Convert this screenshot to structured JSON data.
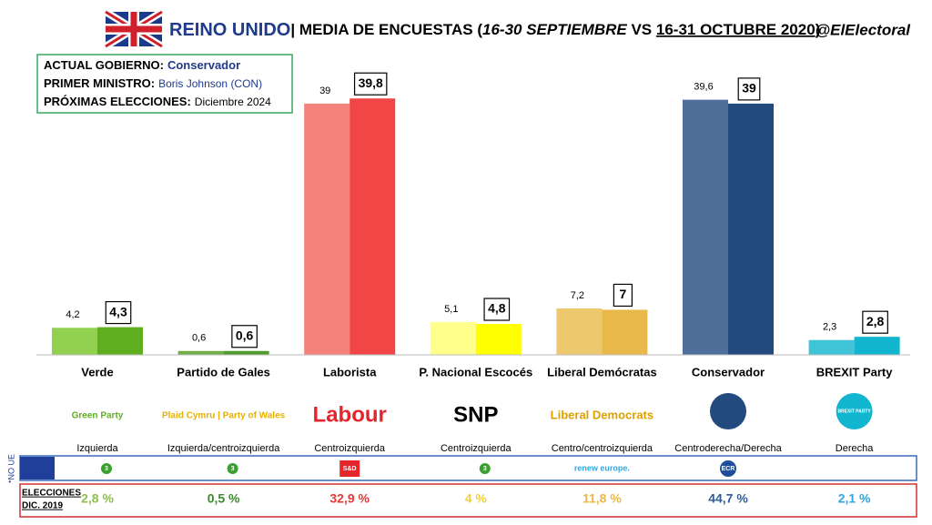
{
  "header": {
    "country": "REINO UNIDO",
    "subtitle_a": "| MEDIA DE ENCUESTAS (",
    "period_a": "16-30 SEPTIEMBRE",
    "vs": " VS ",
    "period_b": "16-31 OCTUBRE 2020",
    "subtitle_b": ")",
    "handle": "@ElElectoral"
  },
  "info_box": {
    "rows": [
      {
        "label": "ACTUAL GOBIERNO:",
        "value": "Conservador"
      },
      {
        "label": "PRIMER MINISTRO:",
        "value": "Boris Johnson (CON)"
      },
      {
        "label": "PRÓXIMAS ELECCIONES:",
        "value": "Diciembre 2024"
      }
    ]
  },
  "chart_data": {
    "type": "bar",
    "categories": [
      "Verde",
      "Partido de Gales",
      "Laborista",
      "P. Nacional Escocés",
      "Liberal Demócratas",
      "Conservador",
      "BREXIT Party"
    ],
    "series": [
      {
        "colors": [
          "#92d050",
          "#70ad47",
          "#f4827a",
          "#ffff8c",
          "#eec86c",
          "#4f6f9a",
          "#40c4d8"
        ],
        "values": [
          4.2,
          0.6,
          39,
          5.1,
          7.2,
          39.6,
          2.3
        ],
        "value_labels": [
          "4,2",
          "0,6",
          "39",
          "5,1",
          "7,2",
          "39,6",
          "2,3"
        ]
      },
      {
        "colors": [
          "#5fae20",
          "#4e9a2a",
          "#f24646",
          "#ffff00",
          "#e8b94a",
          "#234a7e",
          "#12b5cf"
        ],
        "values": [
          4.3,
          0.6,
          39.8,
          4.8,
          7,
          39,
          2.8
        ],
        "value_labels": [
          "4,3",
          "0,6",
          "39,8",
          "4,8",
          "7",
          "39",
          "2,8"
        ]
      }
    ]
  },
  "parties": {
    "logos": [
      "Green Party",
      "Plaid Cymru | Party of Wales",
      "Labour",
      "SNP",
      "Liberal Democrats",
      "",
      "BREXIT PARTY"
    ],
    "ideology": [
      "Izquierda",
      "Izquierda/centroizquierda",
      "Centroizquierda",
      "Centroizquierda",
      "Centro/centroizquierda",
      "Centroderecha/Derecha",
      "Derecha"
    ],
    "eu_groups": [
      "3",
      "3",
      "S&D",
      "3",
      "renew europe.",
      "ECR",
      null
    ],
    "no_ue": "*NO UE"
  },
  "elections_2019": {
    "label": [
      "ELECCIONES",
      "DIC. 2019"
    ],
    "values": [
      "2,8 %",
      "0,5 %",
      "32,9 %",
      "4 %",
      "11,8 %",
      "44,7 %",
      "2,1 %"
    ],
    "colors": [
      "#8cc050",
      "#3a8a2a",
      "#e53935",
      "#f0d040",
      "#e8b94a",
      "#2e5b9a",
      "#2ea6e0"
    ]
  }
}
